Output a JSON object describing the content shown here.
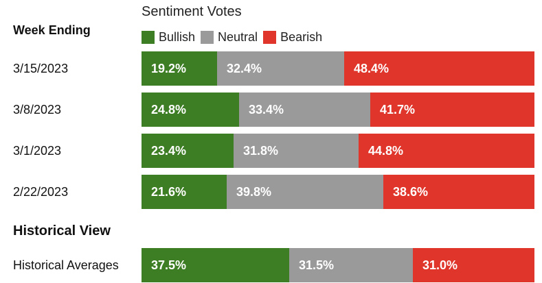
{
  "chart_data": {
    "type": "bar",
    "orientation": "horizontal",
    "stacked": true,
    "title": "Sentiment Votes",
    "row_header": "Week Ending",
    "legend": [
      {
        "name": "Bullish",
        "color": "#3d7d23"
      },
      {
        "name": "Neutral",
        "color": "#9a9a9a"
      },
      {
        "name": "Bearish",
        "color": "#e0352b"
      }
    ],
    "rows": [
      {
        "label": "3/15/2023",
        "values": [
          19.2,
          32.4,
          48.4
        ],
        "labels": [
          "19.2%",
          "32.4%",
          "48.4%"
        ]
      },
      {
        "label": "3/8/2023",
        "values": [
          24.8,
          33.4,
          41.7
        ],
        "labels": [
          "24.8%",
          "33.4%",
          "41.7%"
        ]
      },
      {
        "label": "3/1/2023",
        "values": [
          23.4,
          31.8,
          44.8
        ],
        "labels": [
          "23.4%",
          "31.8%",
          "44.8%"
        ]
      },
      {
        "label": "2/22/2023",
        "values": [
          21.6,
          39.8,
          38.6
        ],
        "labels": [
          "21.6%",
          "39.8%",
          "38.6%"
        ]
      }
    ],
    "historical": {
      "header": "Historical View",
      "label": "Historical Averages",
      "values": [
        37.5,
        31.5,
        31.0
      ],
      "labels": [
        "37.5%",
        "31.5%",
        "31.0%"
      ]
    }
  }
}
